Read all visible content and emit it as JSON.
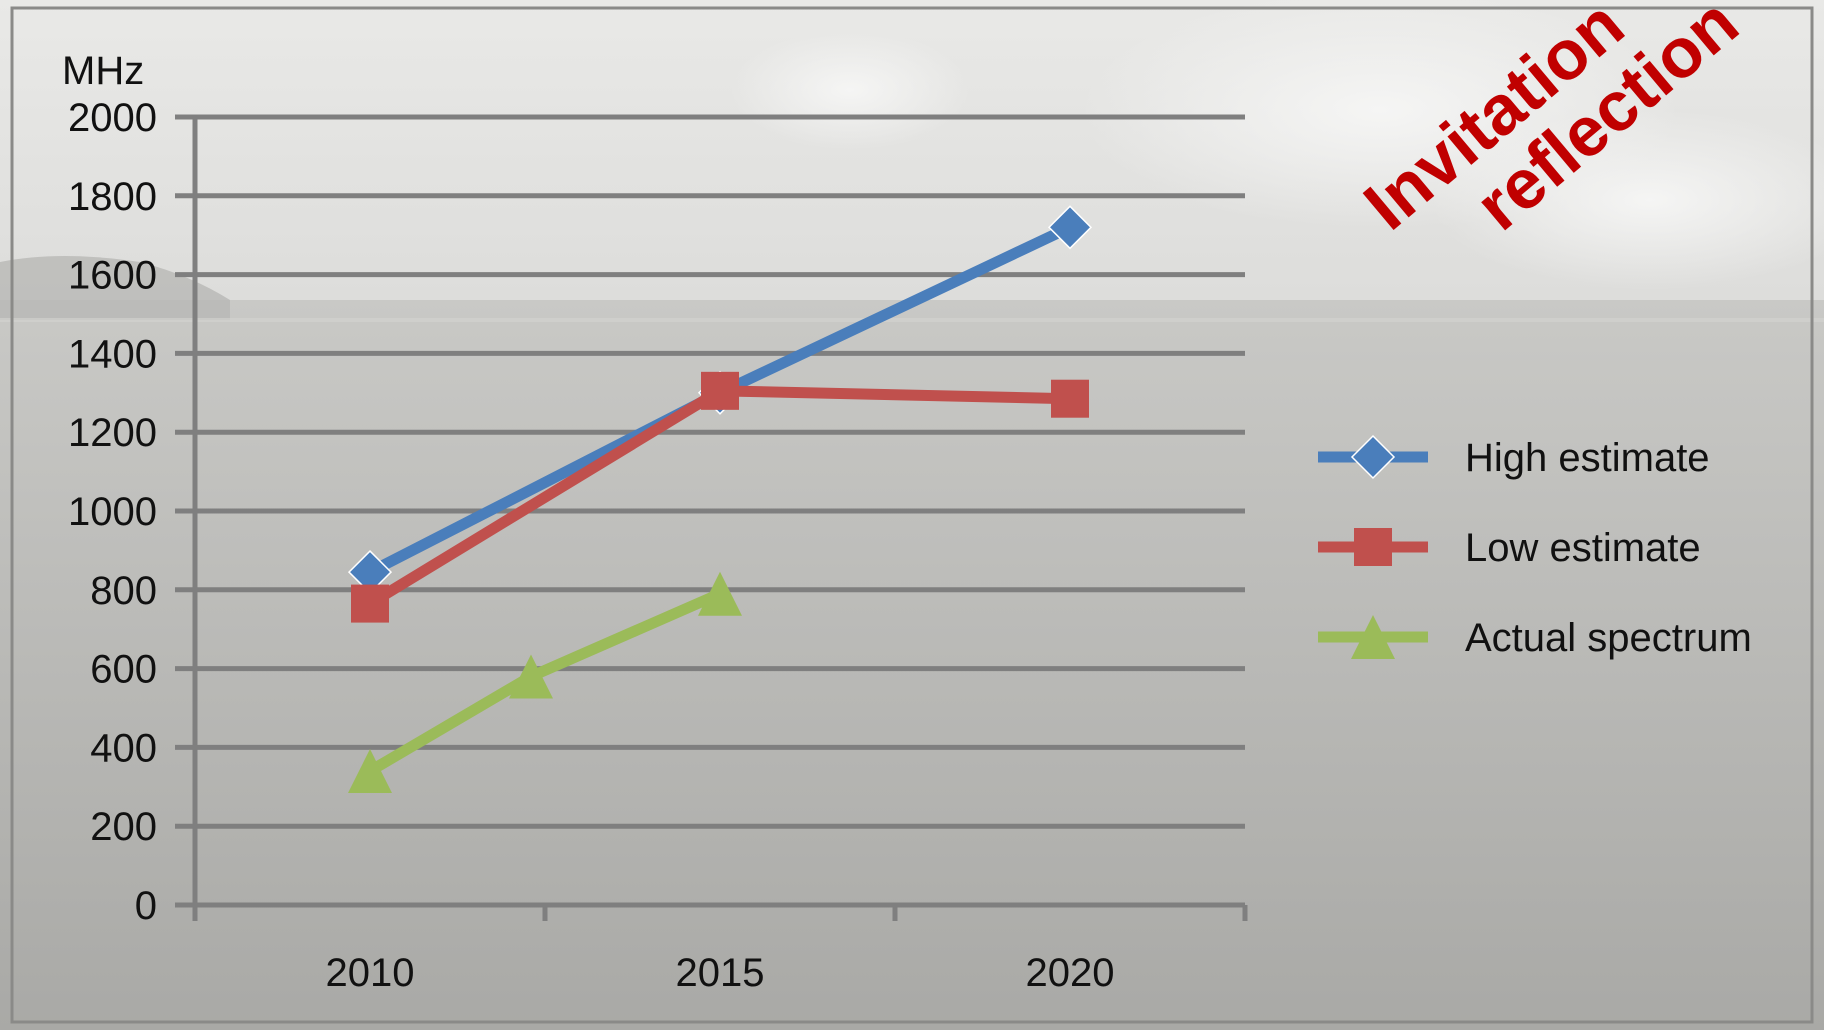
{
  "overlay": {
    "line1": "Invitation",
    "line2": "reflection"
  },
  "colors": {
    "grid": "#7f7f7f",
    "high": "#4a7ebb",
    "low": "#c0504d",
    "actual": "#9bbb59",
    "stamp": "#c00000"
  },
  "chart_data": {
    "type": "line",
    "ylabel": "MHz",
    "xlabel": "",
    "ylim": [
      0,
      2000
    ],
    "yticks": [
      0,
      200,
      400,
      600,
      800,
      1000,
      1200,
      1400,
      1600,
      1800,
      2000
    ],
    "xticks": [
      "2010",
      "2015",
      "2020"
    ],
    "xlim": [
      2007.5,
      2022.5
    ],
    "grid": true,
    "legend_position": "right",
    "series": [
      {
        "name": "High estimate",
        "color": "#4a7ebb",
        "marker": "diamond",
        "points": [
          {
            "x": 2010,
            "y": 845
          },
          {
            "x": 2015,
            "y": 1300
          },
          {
            "x": 2020,
            "y": 1720
          }
        ]
      },
      {
        "name": "Low estimate",
        "color": "#c0504d",
        "marker": "square",
        "points": [
          {
            "x": 2010,
            "y": 765
          },
          {
            "x": 2015,
            "y": 1305
          },
          {
            "x": 2020,
            "y": 1285
          }
        ]
      },
      {
        "name": "Actual spectrum",
        "color": "#9bbb59",
        "marker": "triangle",
        "points": [
          {
            "x": 2010,
            "y": 340
          },
          {
            "x": 2012.3,
            "y": 580
          },
          {
            "x": 2015,
            "y": 790
          }
        ]
      }
    ]
  }
}
